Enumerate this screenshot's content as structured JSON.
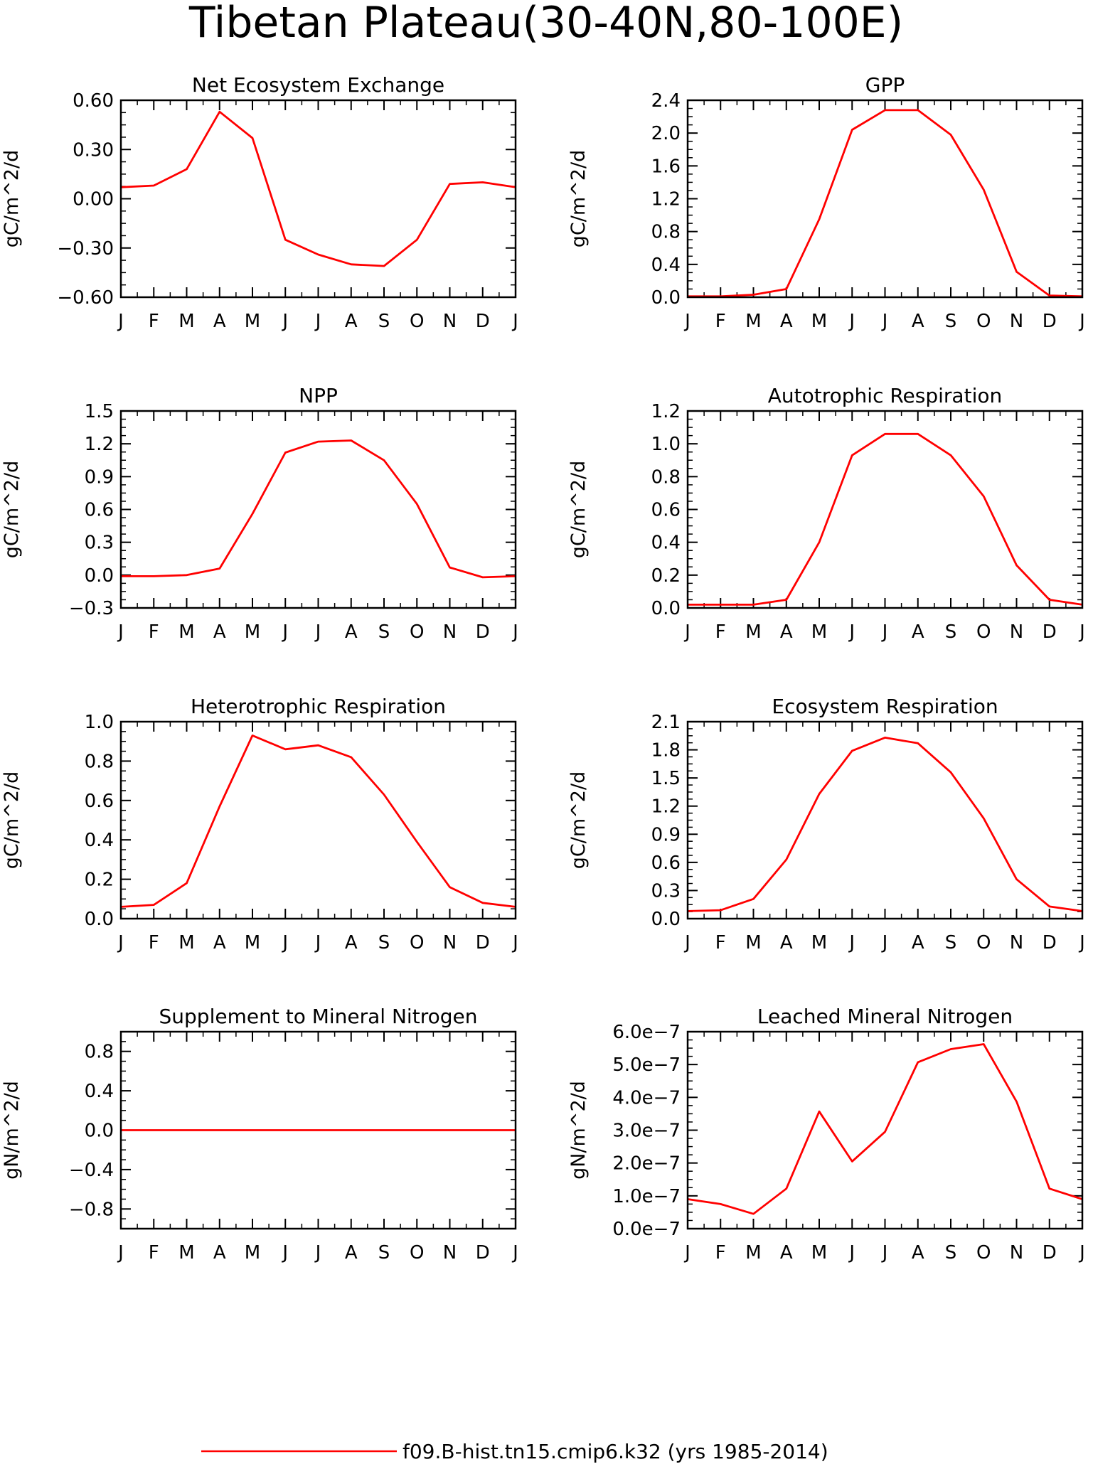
{
  "title": "Tibetan Plateau(30-40N,80-100E)",
  "legend": {
    "label": "f09.B-hist.tn15.cmip6.k32 (yrs 1985-2014)",
    "color": "#ff0000"
  },
  "chart_data": [
    {
      "type": "line",
      "title": "Net Ecosystem Exchange",
      "ylabel": "gC/m^2/d",
      "xlabel": "",
      "categories": [
        "J",
        "F",
        "M",
        "A",
        "M",
        "J",
        "J",
        "A",
        "S",
        "O",
        "N",
        "D",
        "J"
      ],
      "ylim": [
        -0.6,
        0.6
      ],
      "yticks": [
        -0.6,
        -0.3,
        0.0,
        0.3,
        0.6
      ],
      "yticklabels": [
        "−0.60",
        "−0.30",
        "0.00",
        "0.30",
        "0.60"
      ],
      "series": [
        {
          "values": [
            0.07,
            0.08,
            0.18,
            0.53,
            0.37,
            -0.25,
            -0.34,
            -0.4,
            -0.41,
            -0.25,
            0.09,
            0.1,
            0.07
          ]
        }
      ]
    },
    {
      "type": "line",
      "title": "GPP",
      "ylabel": "gC/m^2/d",
      "xlabel": "",
      "categories": [
        "J",
        "F",
        "M",
        "A",
        "M",
        "J",
        "J",
        "A",
        "S",
        "O",
        "N",
        "D",
        "J"
      ],
      "ylim": [
        0.0,
        2.4
      ],
      "yticks": [
        0.0,
        0.4,
        0.8,
        1.2,
        1.6,
        2.0,
        2.4
      ],
      "yticklabels": [
        "0.0",
        "0.4",
        "0.8",
        "1.2",
        "1.6",
        "2.0",
        "2.4"
      ],
      "series": [
        {
          "values": [
            0.01,
            0.01,
            0.03,
            0.1,
            0.95,
            2.04,
            2.28,
            2.28,
            1.98,
            1.31,
            0.31,
            0.02,
            0.01
          ]
        }
      ]
    },
    {
      "type": "line",
      "title": "NPP",
      "ylabel": "gC/m^2/d",
      "xlabel": "",
      "categories": [
        "J",
        "F",
        "M",
        "A",
        "M",
        "J",
        "J",
        "A",
        "S",
        "O",
        "N",
        "D",
        "J"
      ],
      "ylim": [
        -0.3,
        1.5
      ],
      "yticks": [
        -0.3,
        0.0,
        0.3,
        0.6,
        0.9,
        1.2,
        1.5
      ],
      "yticklabels": [
        "−0.3",
        "0.0",
        "0.3",
        "0.6",
        "0.9",
        "1.2",
        "1.5"
      ],
      "series": [
        {
          "values": [
            -0.01,
            -0.01,
            0.0,
            0.06,
            0.56,
            1.12,
            1.22,
            1.23,
            1.05,
            0.65,
            0.07,
            -0.02,
            -0.01
          ]
        }
      ]
    },
    {
      "type": "line",
      "title": "Autotrophic Respiration",
      "ylabel": "gC/m^2/d",
      "xlabel": "",
      "categories": [
        "J",
        "F",
        "M",
        "A",
        "M",
        "J",
        "J",
        "A",
        "S",
        "O",
        "N",
        "D",
        "J"
      ],
      "ylim": [
        0.0,
        1.2
      ],
      "yticks": [
        0.0,
        0.2,
        0.4,
        0.6,
        0.8,
        1.0,
        1.2
      ],
      "yticklabels": [
        "0.0",
        "0.2",
        "0.4",
        "0.6",
        "0.8",
        "1.0",
        "1.2"
      ],
      "series": [
        {
          "values": [
            0.02,
            0.02,
            0.02,
            0.05,
            0.4,
            0.93,
            1.06,
            1.06,
            0.93,
            0.68,
            0.26,
            0.05,
            0.02
          ]
        }
      ]
    },
    {
      "type": "line",
      "title": "Heterotrophic Respiration",
      "ylabel": "gC/m^2/d",
      "xlabel": "",
      "categories": [
        "J",
        "F",
        "M",
        "A",
        "M",
        "J",
        "J",
        "A",
        "S",
        "O",
        "N",
        "D",
        "J"
      ],
      "ylim": [
        0.0,
        1.0
      ],
      "yticks": [
        0.0,
        0.2,
        0.4,
        0.6,
        0.8,
        1.0
      ],
      "yticklabels": [
        "0.0",
        "0.2",
        "0.4",
        "0.6",
        "0.8",
        "1.0"
      ],
      "series": [
        {
          "values": [
            0.06,
            0.07,
            0.18,
            0.57,
            0.93,
            0.86,
            0.88,
            0.82,
            0.63,
            0.39,
            0.16,
            0.08,
            0.06
          ]
        }
      ]
    },
    {
      "type": "line",
      "title": "Ecosystem Respiration",
      "ylabel": "gC/m^2/d",
      "xlabel": "",
      "categories": [
        "J",
        "F",
        "M",
        "A",
        "M",
        "J",
        "J",
        "A",
        "S",
        "O",
        "N",
        "D",
        "J"
      ],
      "ylim": [
        0.0,
        2.1
      ],
      "yticks": [
        0.0,
        0.3,
        0.6,
        0.9,
        1.2,
        1.5,
        1.8,
        2.1
      ],
      "yticklabels": [
        "0.0",
        "0.3",
        "0.6",
        "0.9",
        "1.2",
        "1.5",
        "1.8",
        "2.1"
      ],
      "series": [
        {
          "values": [
            0.08,
            0.09,
            0.21,
            0.63,
            1.33,
            1.79,
            1.93,
            1.87,
            1.56,
            1.07,
            0.42,
            0.13,
            0.08
          ]
        }
      ]
    },
    {
      "type": "line",
      "title": "Supplement to Mineral Nitrogen",
      "ylabel": "gN/m^2/d",
      "xlabel": "",
      "categories": [
        "J",
        "F",
        "M",
        "A",
        "M",
        "J",
        "J",
        "A",
        "S",
        "O",
        "N",
        "D",
        "J"
      ],
      "ylim": [
        -1.0,
        1.0
      ],
      "yticks": [
        -0.8,
        -0.4,
        0.0,
        0.4,
        0.8
      ],
      "yticklabels": [
        "−0.8",
        "−0.4",
        "0.0",
        "0.4",
        "0.8"
      ],
      "series": [
        {
          "values": [
            0,
            0,
            0,
            0,
            0,
            0,
            0,
            0,
            0,
            0,
            0,
            0,
            0
          ]
        }
      ]
    },
    {
      "type": "line",
      "title": "Leached Mineral Nitrogen",
      "ylabel": "gN/m^2/d",
      "xlabel": "",
      "categories": [
        "J",
        "F",
        "M",
        "A",
        "M",
        "J",
        "J",
        "A",
        "S",
        "O",
        "N",
        "D",
        "J"
      ],
      "ylim": [
        0.0,
        6e-07
      ],
      "yticks": [
        0.0,
        1e-07,
        2e-07,
        3e-07,
        4e-07,
        5e-07,
        6e-07
      ],
      "yticklabels": [
        "0.0e−7",
        "1.0e−7",
        "2.0e−7",
        "3.0e−7",
        "4.0e−7",
        "5.0e−7",
        "6.0e−7"
      ],
      "series": [
        {
          "values": [
            9e-08,
            7.5e-08,
            4.5e-08,
            1.22e-07,
            3.57e-07,
            2.05e-07,
            2.95e-07,
            5.07e-07,
            5.47e-07,
            5.62e-07,
            3.87e-07,
            1.22e-07,
            9e-08
          ]
        }
      ]
    }
  ]
}
